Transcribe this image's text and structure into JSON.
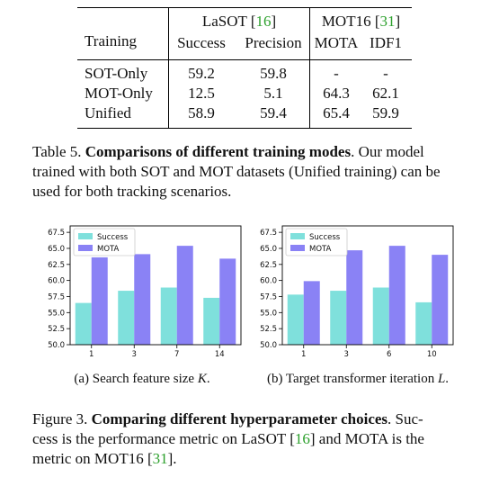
{
  "table": {
    "header": {
      "col0": "Training",
      "group1": {
        "name": "LaSOT",
        "ref": "16"
      },
      "group2": {
        "name": "MOT16",
        "ref": "31"
      },
      "sub": [
        "Success",
        "Precision",
        "MOTA",
        "IDF1"
      ]
    },
    "rows": [
      {
        "label": "SOT-Only",
        "values": [
          "59.2",
          "59.8",
          "-",
          "-"
        ]
      },
      {
        "label": "MOT-Only",
        "values": [
          "12.5",
          "5.1",
          "64.3",
          "62.1"
        ]
      },
      {
        "label": "Unified",
        "values": [
          "58.9",
          "59.4",
          "65.4",
          "59.9"
        ]
      }
    ]
  },
  "table_caption": {
    "prefix": "Table 5.",
    "bold": "Comparisons of different training modes",
    "line1_rest": ". Our model",
    "line2": "trained with both SOT and MOT datasets (Unified training) can be",
    "line3": "used for both tracking scenarios."
  },
  "chart_data": [
    {
      "type": "bar",
      "categories": [
        "1",
        "3",
        "7",
        "14"
      ],
      "series": [
        {
          "name": "Success",
          "values": [
            56.5,
            58.4,
            58.9,
            57.3
          ],
          "color": "#7fe0dc"
        },
        {
          "name": "MOTA",
          "values": [
            63.6,
            64.1,
            65.4,
            63.4
          ],
          "color": "#8a82f5"
        }
      ],
      "ylim": [
        50.0,
        68.5
      ],
      "yticks": [
        "50.0",
        "52.5",
        "55.0",
        "57.5",
        "60.0",
        "62.5",
        "65.0",
        "67.5"
      ],
      "legend": "top-left",
      "subcaption": {
        "prefix": "(a) Search feature size ",
        "var": "K",
        "suffix": "."
      }
    },
    {
      "type": "bar",
      "categories": [
        "1",
        "3",
        "6",
        "10"
      ],
      "series": [
        {
          "name": "Success",
          "values": [
            57.8,
            58.4,
            58.9,
            56.6
          ],
          "color": "#7fe0dc"
        },
        {
          "name": "MOTA",
          "values": [
            59.9,
            64.7,
            65.4,
            64.0
          ],
          "color": "#8a82f5"
        }
      ],
      "ylim": [
        50.0,
        68.5
      ],
      "yticks": [
        "50.0",
        "52.5",
        "55.0",
        "57.5",
        "60.0",
        "62.5",
        "65.0",
        "67.5"
      ],
      "legend": "top-left",
      "subcaption": {
        "prefix": "(b) Target transformer iteration ",
        "var": "L",
        "suffix": "."
      }
    }
  ],
  "figure_caption": {
    "prefix": "Figure 3.",
    "bold": "Comparing different hyperparameter choices",
    "line1_rest": ". Suc-",
    "line2a": "cess is the performance metric on LaSOT [",
    "line2ref": "16",
    "line2b": "] and MOTA is the",
    "line3a": "metric on MOT16 [",
    "line3ref": "31",
    "line3b": "]."
  }
}
